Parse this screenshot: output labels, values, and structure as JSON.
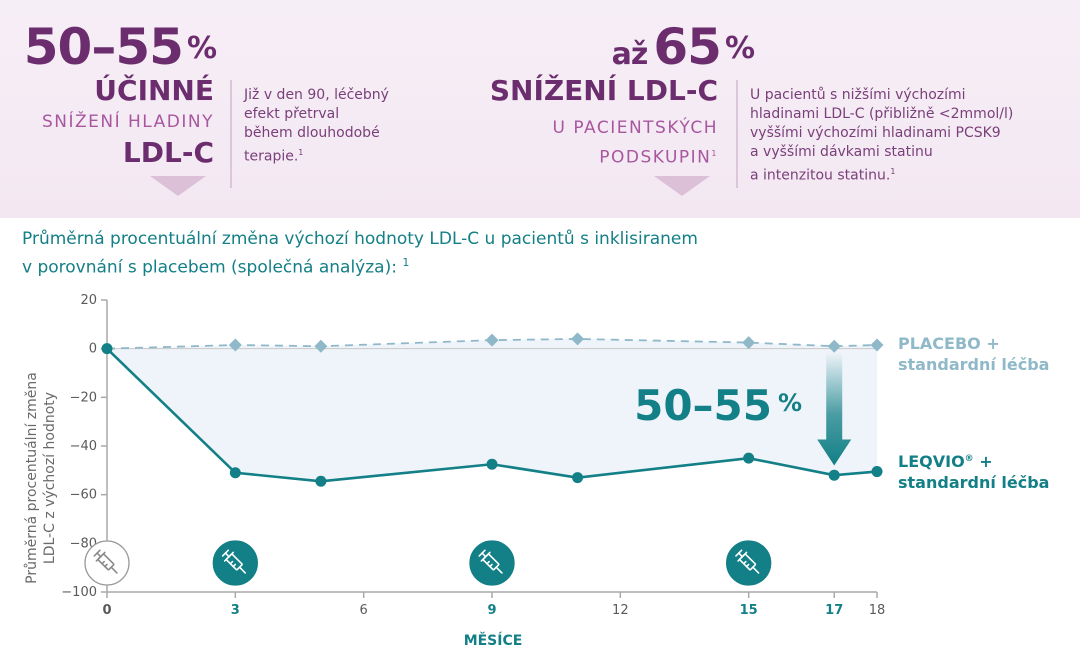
{
  "banner": {
    "left": {
      "pct_value": "50–55",
      "pct_sign": "%",
      "headline": "ÚČINNÉ",
      "sub1": "SNÍŽENÍ HLADINY",
      "sub2": "LDL-C",
      "note_lines": [
        "Již v den 90, léčebný",
        "efekt přetrval",
        "během dlouhodobé",
        "terapie."
      ],
      "note_sup": "1"
    },
    "right": {
      "prefix": "až",
      "pct_value": "65",
      "pct_sign": "%",
      "headline": "SNÍŽENÍ LDL-C",
      "sub1": "U PACIENTSKÝCH",
      "sub2": "PODSKUPIN",
      "sub_sup": "1",
      "note_lines": [
        "U pacientů s nižšími výchozími",
        "hladinami LDL-C (přibližně <2mmol/l)",
        "vyššími výchozími hladinami PCSK9",
        "a vyššími dávkami statinu",
        "a intenzitou statinu."
      ],
      "note_sup": "1"
    },
    "colors": {
      "purple": "#6b2d6e",
      "light_purple": "#a8579f",
      "background": "#f5ecf4"
    }
  },
  "chart_title": {
    "line1": "Průměrná procentuální změna výchozí hodnoty LDL-C u pacientů s inklisiranem",
    "line2": "v porovnání s placebem (společná analýza):",
    "sup": "1"
  },
  "chart_data": {
    "type": "line",
    "xlabel": "MĚSÍCE",
    "ylabel_lines": [
      "Průměrná procentuální změna",
      "LDL-C z výchozí  hodnoty"
    ],
    "xlim": [
      0,
      18
    ],
    "ylim": [
      -100,
      20
    ],
    "yticks": [
      20,
      0,
      -20,
      -40,
      -60,
      -80,
      -100
    ],
    "xticks": [
      {
        "value": 0,
        "label": "0",
        "highlight": false
      },
      {
        "value": 3,
        "label": "3",
        "highlight": true
      },
      {
        "value": 6,
        "label": "6",
        "highlight": false
      },
      {
        "value": 9,
        "label": "9",
        "highlight": true
      },
      {
        "value": 12,
        "label": "12",
        "highlight": false
      },
      {
        "value": 15,
        "label": "15",
        "highlight": true
      },
      {
        "value": 17,
        "label": "17",
        "highlight": true
      },
      {
        "value": 18,
        "label": "18",
        "highlight": false
      }
    ],
    "series": [
      {
        "name": "PLACEBO + standardní léčba",
        "label_lines": [
          "PLACEBO +",
          "standardní léčba"
        ],
        "color": "#8fb8c8",
        "style": "dashed",
        "marker": "diamond",
        "x": [
          0,
          3,
          5,
          9,
          11,
          15,
          17,
          18
        ],
        "y": [
          0,
          1.5,
          1,
          3.5,
          4,
          2.5,
          1,
          1.5
        ]
      },
      {
        "name": "LEQVIO® + standardní léčba",
        "label_lines": [
          "LEQVIO",
          "standardní léčba"
        ],
        "label_reg": "®",
        "label_plus": " +",
        "color": "#137f86",
        "style": "solid",
        "marker": "circle",
        "x": [
          0,
          3,
          5,
          9,
          11,
          15,
          17,
          18
        ],
        "y": [
          0,
          -51,
          -54.5,
          -47.5,
          -53,
          -45,
          -52,
          -50.5
        ]
      }
    ],
    "annotation": {
      "text": "50–55",
      "sign": "%",
      "at_x": 17,
      "from_y": 0,
      "to_y": -48
    },
    "injections": [
      {
        "month": 0,
        "style": "outline",
        "icon": "syringe-icon"
      },
      {
        "month": 3,
        "style": "filled",
        "icon": "syringe-icon"
      },
      {
        "month": 9,
        "style": "filled",
        "icon": "syringe-icon"
      },
      {
        "month": 15,
        "style": "filled",
        "icon": "syringe-icon"
      }
    ],
    "colors": {
      "axis": "#a9a9a9",
      "tick_text": "#5a5a5a",
      "highlight": "#137f86",
      "fill": "#eef4fa"
    }
  }
}
